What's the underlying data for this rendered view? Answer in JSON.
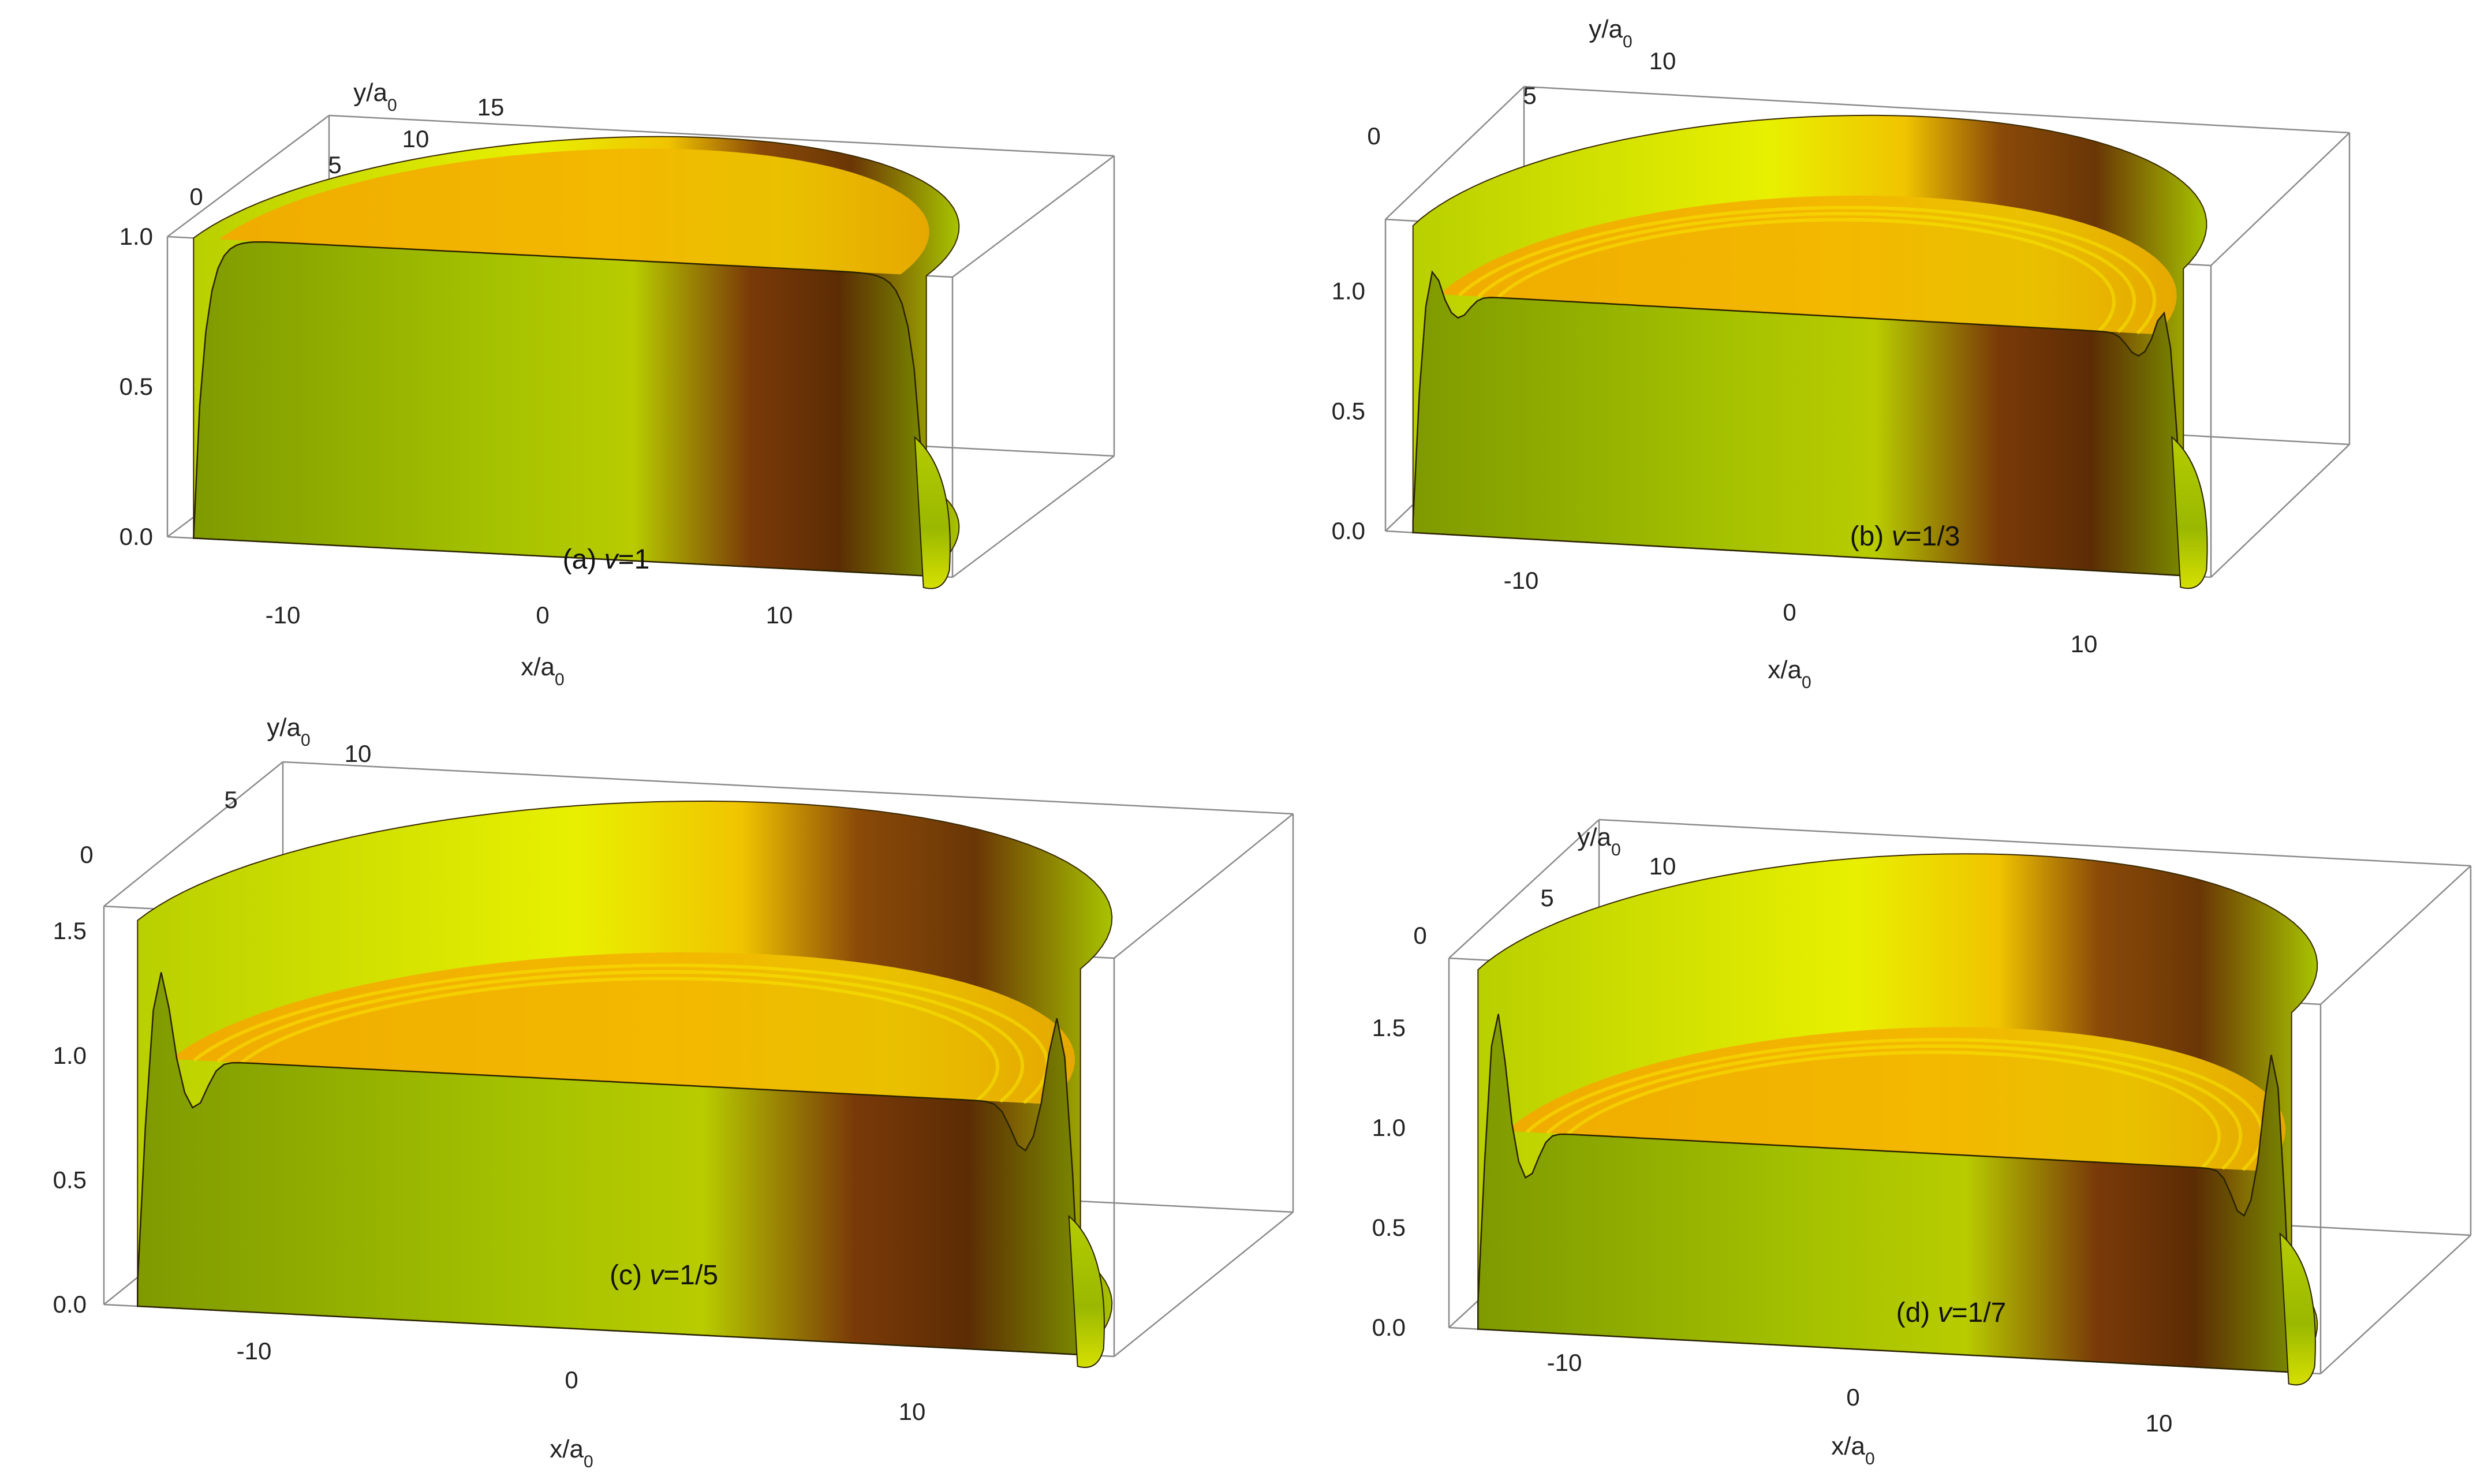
{
  "panels": [
    {
      "caption": "(a) v=1",
      "nu": "1/1",
      "xlabel": "x/a0",
      "ylabel": "y/a0",
      "x_ticks": [
        "-10",
        "0",
        "10"
      ],
      "y_ticks": [
        "0",
        "5",
        "10",
        "15"
      ],
      "z_ticks": [
        "0.0",
        "0.5",
        "1.0"
      ]
    },
    {
      "caption": "(b) v=1/3",
      "nu": "1/3",
      "xlabel": "x/a0",
      "ylabel": "y/a0",
      "x_ticks": [
        "-10",
        "0",
        "10"
      ],
      "y_ticks": [
        "0",
        "5",
        "10"
      ],
      "z_ticks": [
        "0.0",
        "0.5",
        "1.0"
      ]
    },
    {
      "caption": "(c) v=1/5",
      "nu": "1/5",
      "xlabel": "x/a0",
      "ylabel": "y/a0",
      "x_ticks": [
        "-10",
        "0",
        "10"
      ],
      "y_ticks": [
        "0",
        "5",
        "10"
      ],
      "z_ticks": [
        "0.0",
        "0.5",
        "1.0",
        "1.5"
      ]
    },
    {
      "caption": "(d) v=1/7",
      "nu": "1/7",
      "xlabel": "x/a0",
      "ylabel": "y/a0",
      "x_ticks": [
        "-10",
        "0",
        "10"
      ],
      "y_ticks": [
        "0",
        "5",
        "10"
      ],
      "z_ticks": [
        "0.0",
        "0.5",
        "1.0",
        "1.5"
      ]
    }
  ],
  "chart_data": [
    {
      "type": "surface",
      "title": "(a) v=1",
      "xlabel": "x/a0",
      "ylabel": "y/a0",
      "zlabel": "",
      "xlim": [
        -15,
        15
      ],
      "ylim": [
        0,
        15
      ],
      "zlim": [
        0,
        1.0
      ],
      "plateau_density": 1.0,
      "edge_peak": 1.0,
      "edge_dip": 1.0,
      "radius": 14,
      "colors": {
        "top": "#f2b300",
        "front": "#a8c400",
        "shadow": "#7a3a08",
        "highlight": "#e8f000"
      }
    },
    {
      "type": "surface",
      "title": "(b) v=1/3",
      "xlabel": "x/a0",
      "ylabel": "y/a0",
      "zlabel": "",
      "xlim": [
        -15,
        15
      ],
      "ylim": [
        0,
        13
      ],
      "zlim": [
        0,
        1.3
      ],
      "plateau_density": 1.0,
      "edge_peak": 1.28,
      "edge_dip": 0.92,
      "radius": 14,
      "colors": {
        "top": "#f2b300",
        "front": "#a8c400",
        "shadow": "#7a3a08",
        "highlight": "#e8f000"
      }
    },
    {
      "type": "surface",
      "title": "(c) v=1/5",
      "xlabel": "x/a0",
      "ylabel": "y/a0",
      "zlabel": "",
      "xlim": [
        -15,
        15
      ],
      "ylim": [
        0,
        12
      ],
      "zlim": [
        0,
        1.6
      ],
      "plateau_density": 1.0,
      "edge_peak": 1.55,
      "edge_dip": 0.82,
      "radius": 14,
      "colors": {
        "top": "#f2b300",
        "front": "#a8c400",
        "shadow": "#7a3a08",
        "highlight": "#e8f000"
      }
    },
    {
      "type": "surface",
      "title": "(d) v=1/7",
      "xlabel": "x/a0",
      "ylabel": "y/a0",
      "zlabel": "",
      "xlim": [
        -15,
        15
      ],
      "ylim": [
        0,
        12
      ],
      "zlim": [
        0,
        1.85
      ],
      "plateau_density": 1.0,
      "edge_peak": 1.8,
      "edge_dip": 0.78,
      "radius": 14,
      "colors": {
        "top": "#f2b300",
        "front": "#a8c400",
        "shadow": "#7a3a08",
        "highlight": "#e8f000"
      }
    }
  ]
}
